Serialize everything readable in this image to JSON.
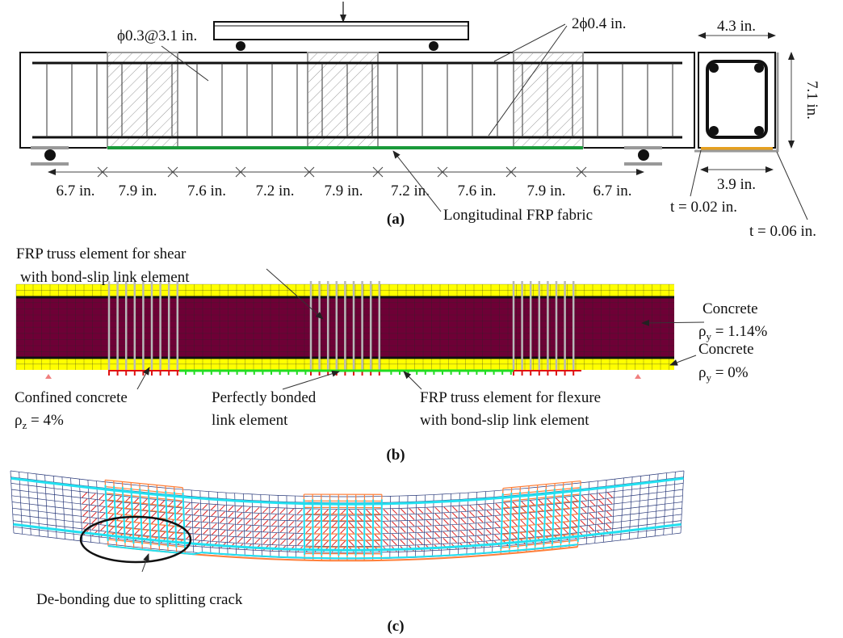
{
  "panel_a": {
    "stirrup_label": "ϕ0.3@3.1 in.",
    "bar_label": "2ϕ0.4 in.",
    "dimensions": [
      "6.7 in.",
      "7.9 in.",
      "7.6 in.",
      "7.2 in.",
      "7.9 in.",
      "7.2 in.",
      "7.6 in.",
      "7.9 in.",
      "6.7 in."
    ],
    "fabric_label": "Longitudinal FRP fabric",
    "caption": "(a)",
    "section": {
      "width": "4.3 in.",
      "height": "7.1 in.",
      "inner_width": "3.9 in.",
      "t_side": "t = 0.02 in.",
      "t_bottom": "t = 0.06 in."
    }
  },
  "panel_b": {
    "shear_label": [
      "FRP truss element for shear",
      "with bond-slip link element"
    ],
    "concrete_top": {
      "name": "Concrete",
      "symbol": "ρ",
      "sub": "y",
      "value": " = 1.14%"
    },
    "concrete_bottom": {
      "name": "Concrete",
      "symbol": "ρ",
      "sub": "y",
      "value": " = 0%"
    },
    "confined": {
      "name": "Confined concrete",
      "symbol": "ρ",
      "sub": "z",
      "value": " = 4%"
    },
    "bonded_label": [
      "Perfectly bonded",
      "link element"
    ],
    "flexure_label": [
      "FRP truss element for flexure",
      "with bond-slip link element"
    ],
    "caption": "(b)"
  },
  "panel_c": {
    "debond_label": "De-bonding due to splitting crack",
    "caption": "(c)"
  }
}
